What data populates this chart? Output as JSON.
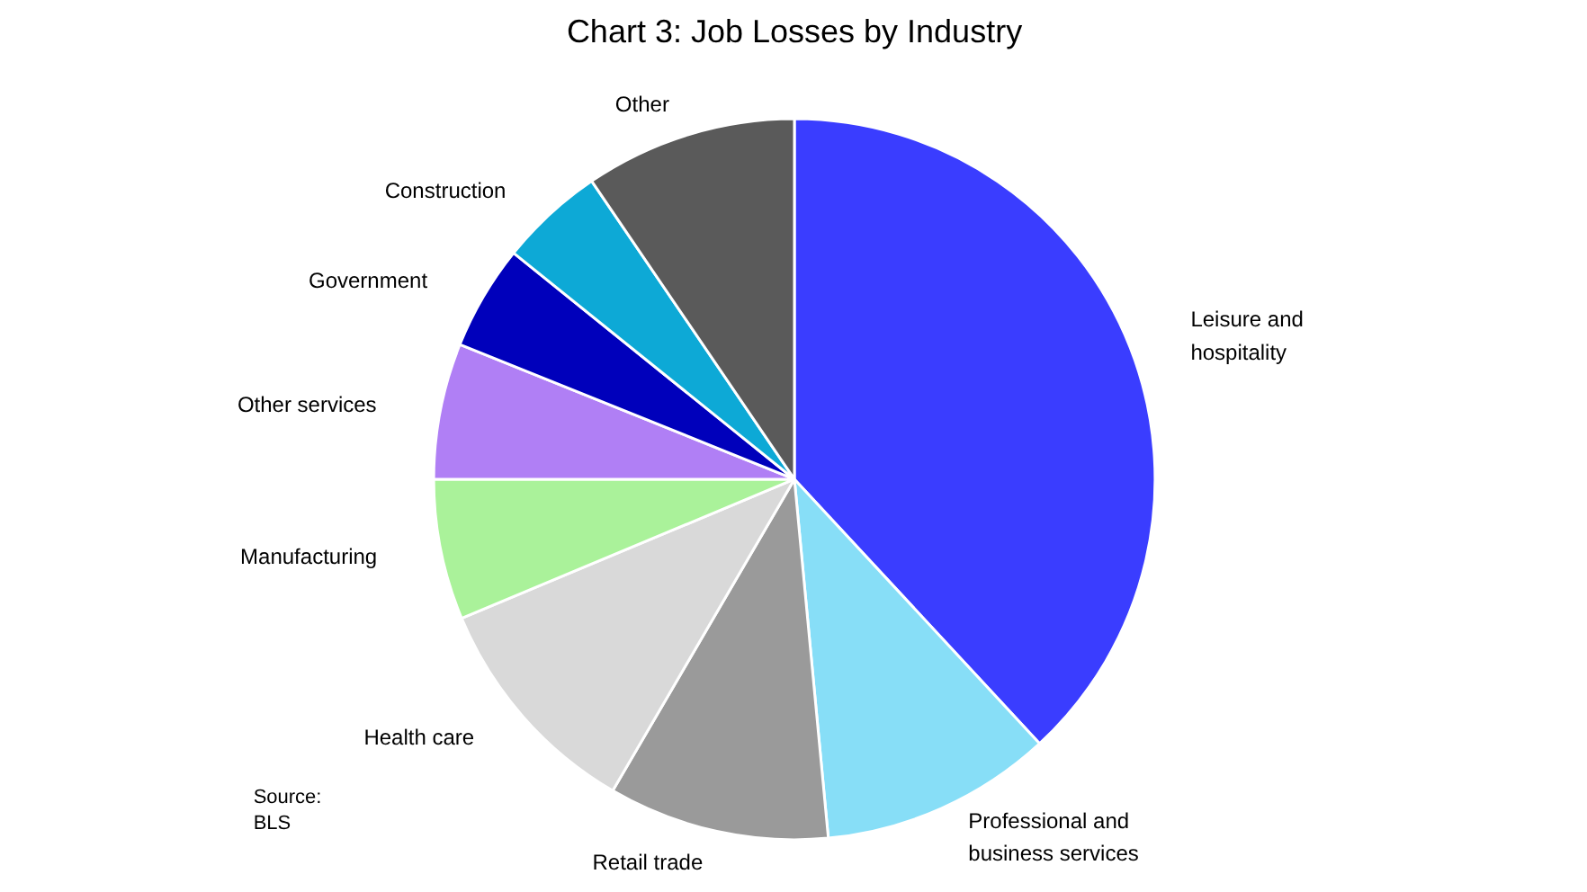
{
  "chart_data": {
    "type": "pie",
    "title": "Chart 3: Job Losses by Industry",
    "categories": [
      "Leisure and hospitality",
      "Professional and business services",
      "Retail trade",
      "Health care",
      "Manufacturing",
      "Other services",
      "Government",
      "Construction",
      "Other"
    ],
    "values": [
      38.1,
      10.4,
      9.9,
      10.3,
      6.3,
      6.1,
      4.7,
      4.7,
      9.5
    ],
    "colors": [
      "#3a3dff",
      "#87def7",
      "#9a9a9a",
      "#d9d9d9",
      "#aaf29a",
      "#b07ff5",
      "#0000bb",
      "#0da9d6",
      "#5a5a5a"
    ],
    "annotations": [
      "Source:\nBLS"
    ]
  }
}
